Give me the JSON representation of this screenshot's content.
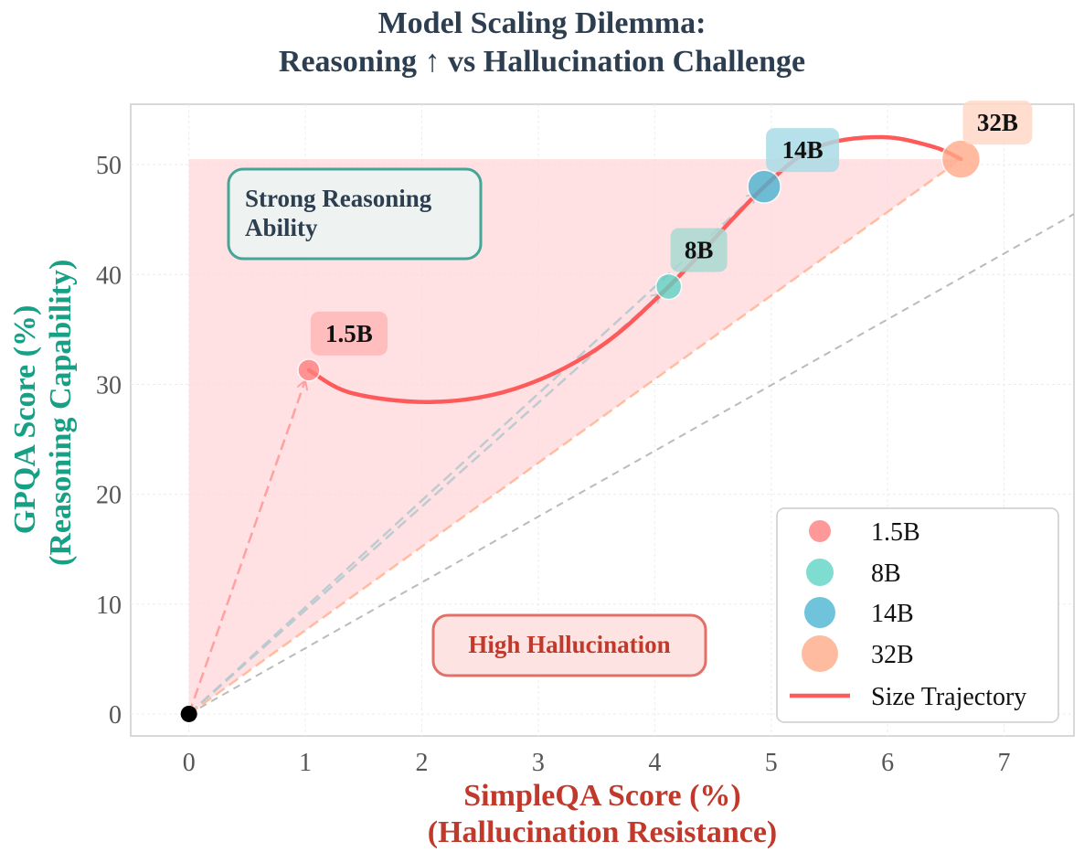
{
  "chart_data": {
    "type": "scatter",
    "title": [
      "Model Scaling Dilemma:",
      "Reasoning ↑ vs Hallucination Challenge"
    ],
    "xlabel": [
      "SimpleQA Score (%)",
      "(Hallucination Resistance)"
    ],
    "ylabel": [
      "GPQA Score (%)",
      "(Reasoning Capability)"
    ],
    "xlim": [
      -0.5,
      7.6
    ],
    "ylim": [
      -2,
      55.5
    ],
    "xticks": [
      0,
      1,
      2,
      3,
      4,
      5,
      6,
      7
    ],
    "yticks": [
      0,
      10,
      20,
      30,
      40,
      50
    ],
    "grid": true,
    "origin": {
      "x": 0,
      "y": 0
    },
    "points": [
      {
        "name": "1.5B",
        "x": 1.03,
        "y": 31.3,
        "color": "#ff7f7f",
        "label_bg": "#ffb6b6"
      },
      {
        "name": "8B",
        "x": 4.12,
        "y": 38.9,
        "color": "#5fd3c4",
        "label_bg": "#a9d8d1"
      },
      {
        "name": "14B",
        "x": 4.94,
        "y": 48.0,
        "color": "#4bb4d1",
        "label_bg": "#a9dbe6"
      },
      {
        "name": "32B",
        "x": 6.63,
        "y": 50.5,
        "color": "#ffaa88",
        "label_bg": "#ffd8c8"
      }
    ],
    "trajectory": {
      "name": "Size Trajectory",
      "color": "#ff5a5a",
      "x": [
        1.03,
        1.4,
        2.1,
        2.8,
        3.5,
        4.12,
        4.94,
        5.4,
        5.95,
        6.4,
        6.63
      ],
      "y": [
        31.3,
        29.2,
        28.4,
        29.6,
        33.2,
        38.9,
        48.0,
        51.6,
        52.5,
        51.6,
        50.5
      ]
    },
    "reference_line": {
      "x": [
        0,
        7.6
      ],
      "y": [
        0,
        45.5
      ],
      "color": "#bbbbbb"
    },
    "shaded_region": {
      "color": "#ffd6d9"
    },
    "annotations": [
      {
        "text": [
          "Strong Reasoning",
          "Ability"
        ],
        "color": "#2c3e50",
        "border": "#45a596",
        "bg": "#eef3f1"
      },
      {
        "text": [
          "High Hallucination"
        ],
        "color": "#c0392b",
        "border": "#e07068",
        "bg": "#fde4e3"
      }
    ],
    "legend": {
      "position": "bottom-right",
      "entries": [
        "1.5B",
        "8B",
        "14B",
        "32B",
        "Size Trajectory"
      ]
    }
  }
}
